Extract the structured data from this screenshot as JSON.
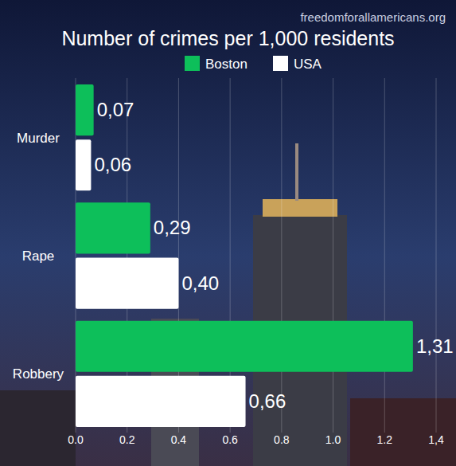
{
  "chart_data": {
    "type": "bar",
    "orientation": "horizontal",
    "title": "Number of crimes per 1,000 residents",
    "source": "freedomforallamericans.org",
    "categories": [
      "Murder",
      "Rape",
      "Robbery"
    ],
    "series": [
      {
        "name": "Boston",
        "color": "#0dbf5a",
        "values": [
          0.07,
          0.29,
          1.31
        ],
        "value_labels": [
          "0,07",
          "0,29",
          "1,31"
        ]
      },
      {
        "name": "USA",
        "color": "#ffffff",
        "values": [
          0.06,
          0.4,
          0.66
        ],
        "value_labels": [
          "0,06",
          "0,40",
          "0,66"
        ]
      }
    ],
    "xlim": [
      0,
      1.4
    ],
    "xticks": [
      {
        "value": 0,
        "label": "0.0"
      },
      0.2,
      0.4,
      0.6,
      0.8,
      {
        "value": 1,
        "label": "1.0"
      },
      1.2,
      {
        "value": 1.4,
        "label": "1,4"
      }
    ],
    "grid": true,
    "legend": "top",
    "data_labels": true
  }
}
